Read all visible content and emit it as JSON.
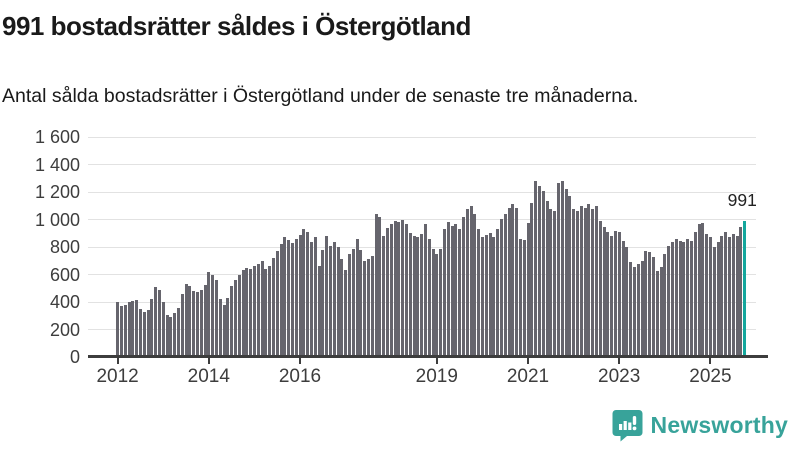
{
  "header": {
    "title": "991 bostadsrätter såldes i Östergötland",
    "subtitle": "Antal sålda bostadsrätter i Östergötland under de senaste tre månaderna."
  },
  "chart_data": {
    "type": "bar",
    "title": "991 bostadsrätter såldes i Östergötland",
    "subtitle": "Antal sålda bostadsrätter i Östergötland under de senaste tre månaderna.",
    "xlabel": "",
    "ylabel": "",
    "ylim": [
      0,
      1600
    ],
    "grid": true,
    "frequency": "monthly",
    "x_start_year": 2012,
    "x_start_month": 1,
    "bar_color": "#66656d",
    "highlight_color": "#14a79d",
    "values": [
      400,
      370,
      380,
      400,
      410,
      415,
      350,
      330,
      340,
      425,
      510,
      485,
      400,
      305,
      290,
      320,
      360,
      460,
      530,
      520,
      480,
      470,
      490,
      525,
      620,
      600,
      560,
      420,
      380,
      430,
      520,
      560,
      600,
      630,
      650,
      640,
      660,
      680,
      700,
      640,
      660,
      720,
      770,
      820,
      870,
      850,
      830,
      860,
      890,
      930,
      910,
      840,
      870,
      665,
      775,
      880,
      810,
      835,
      800,
      715,
      630,
      750,
      785,
      860,
      775,
      700,
      715,
      735,
      1040,
      1015,
      880,
      940,
      965,
      990,
      980,
      995,
      965,
      905,
      880,
      870,
      895,
      965,
      860,
      785,
      750,
      785,
      930,
      980,
      955,
      965,
      930,
      1015,
      1075,
      1100,
      1040,
      930,
      870,
      890,
      905,
      870,
      930,
      1005,
      1040,
      1085,
      1110,
      1087,
      858,
      853,
      978,
      1123,
      1280,
      1243,
      1207,
      1135,
      1075,
      1063,
      1268,
      1280,
      1219,
      1171,
      1075,
      1063,
      1099,
      1087,
      1111,
      1075,
      1099,
      990,
      942,
      906,
      882,
      918,
      906,
      846,
      797,
      689,
      653,
      677,
      701,
      774,
      762,
      725,
      629,
      653,
      750,
      810,
      834,
      858,
      846,
      834,
      858,
      846,
      906,
      966,
      978,
      894,
      870,
      797,
      834,
      882,
      906,
      870,
      894,
      882,
      942,
      991
    ],
    "highlight": {
      "index": 165,
      "value": 991,
      "label": "991"
    },
    "y_ticks": [
      {
        "value": 0,
        "label": "0"
      },
      {
        "value": 200,
        "label": "200"
      },
      {
        "value": 400,
        "label": "400"
      },
      {
        "value": 600,
        "label": "600"
      },
      {
        "value": 800,
        "label": "800"
      },
      {
        "value": 1000,
        "label": "1 000"
      },
      {
        "value": 1200,
        "label": "1 200"
      },
      {
        "value": 1400,
        "label": "1 400"
      },
      {
        "value": 1600,
        "label": "1 600"
      }
    ],
    "x_ticks": [
      {
        "year": 2012,
        "label": "2012"
      },
      {
        "year": 2014,
        "label": "2014"
      },
      {
        "year": 2016,
        "label": "2016"
      },
      {
        "year": 2019,
        "label": "2019"
      },
      {
        "year": 2021,
        "label": "2021"
      },
      {
        "year": 2023,
        "label": "2023"
      },
      {
        "year": 2025,
        "label": "2025"
      }
    ],
    "legend": null
  },
  "footer": {
    "brand": "Newsworthy",
    "brand_color": "#38a39a",
    "logo_icon": "bar-chart-speech-bubble-icon"
  },
  "colors": {
    "bar": "#66656d",
    "highlight": "#14a79d",
    "gridline": "#e2e2e2",
    "axis": "#3d3d3d",
    "text": "#1a1a1a"
  }
}
